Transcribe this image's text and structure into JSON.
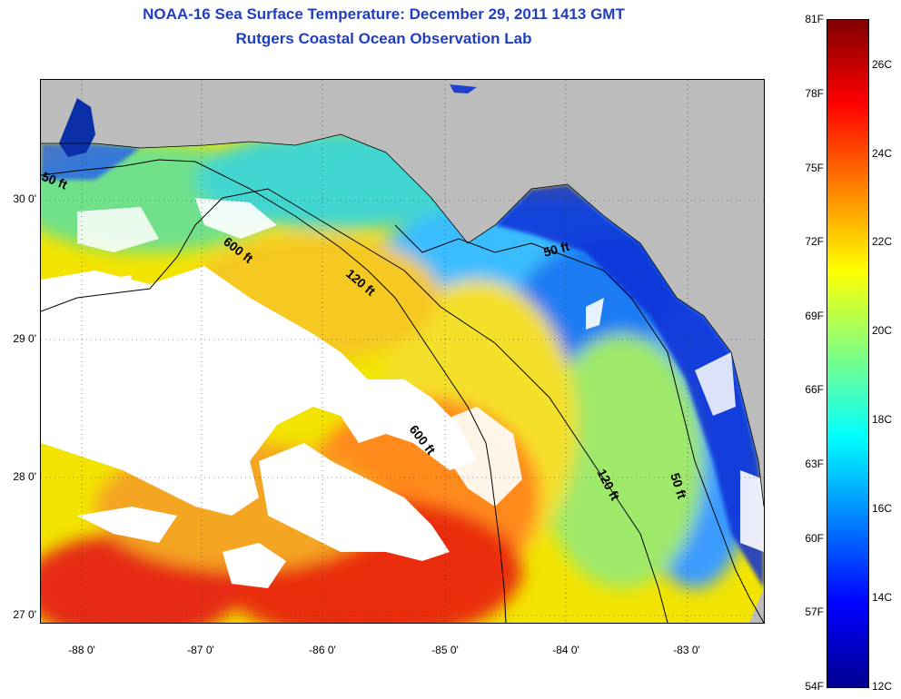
{
  "header": {
    "title": "NOAA-16 Sea Surface Temperature:  December 29, 2011 1413 GMT",
    "subtitle": "Rutgers Coastal Ocean Observation Lab"
  },
  "map": {
    "latitude_labels": [
      "30 0'",
      "29 0'",
      "28 0'",
      "27 0'"
    ],
    "longitude_labels": [
      "-88 0'",
      "-87 0'",
      "-86 0'",
      "-85 0'",
      "-84 0'",
      "-83 0'"
    ],
    "contour_labels": [
      "50 ft",
      "600 ft",
      "120 ft",
      "50 ft",
      "600 ft",
      "120 ft",
      "50 ft"
    ],
    "colors": {
      "land": "#bcbcbc",
      "cloud": "#ffffff",
      "warm": "#e8200c",
      "cool": "#0a2fd8"
    }
  },
  "colorbar": {
    "fahrenheit_labels": [
      "81F",
      "78F",
      "75F",
      "72F",
      "69F",
      "66F",
      "63F",
      "60F",
      "57F",
      "54F"
    ],
    "celsius_labels": [
      "26C",
      "24C",
      "22C",
      "20C",
      "18C",
      "16C",
      "14C",
      "12C"
    ],
    "gradient": [
      "#7f0000",
      "#ff0000",
      "#ff8000",
      "#ffff00",
      "#80ff80",
      "#00ffff",
      "#0080ff",
      "#0000ff",
      "#00008f"
    ]
  }
}
